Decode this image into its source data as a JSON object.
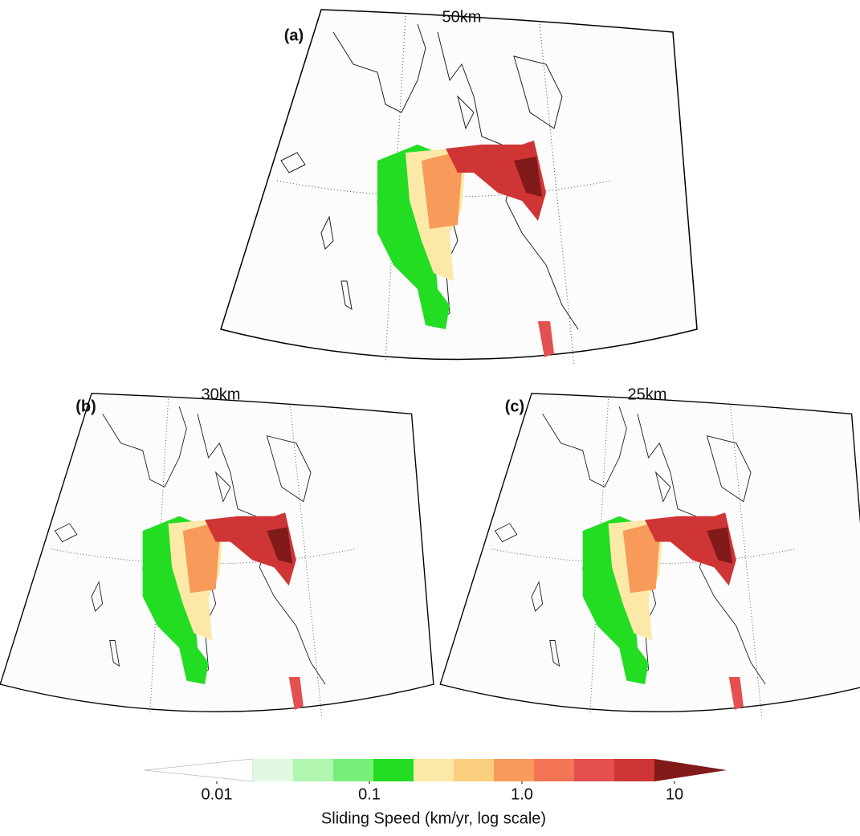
{
  "panels": [
    {
      "label": "(a)",
      "title": "50km"
    },
    {
      "label": "(b)",
      "title": "30km"
    },
    {
      "label": "(c)",
      "title": "25km"
    }
  ],
  "colorbar": {
    "label": "Sliding Speed (km/yr, log scale)",
    "log_scale": true,
    "colors": [
      "#ffffff",
      "#e0f9e0",
      "#b0f5b0",
      "#78ee78",
      "#22dd22",
      "#fce9a8",
      "#fbcf7e",
      "#f79a5a",
      "#f47456",
      "#e45050",
      "#cf3535",
      "#811a1a"
    ],
    "ticks": [
      0.01,
      0.1,
      {
        "value": 1,
        "label": "1.0"
      },
      10
    ]
  }
}
